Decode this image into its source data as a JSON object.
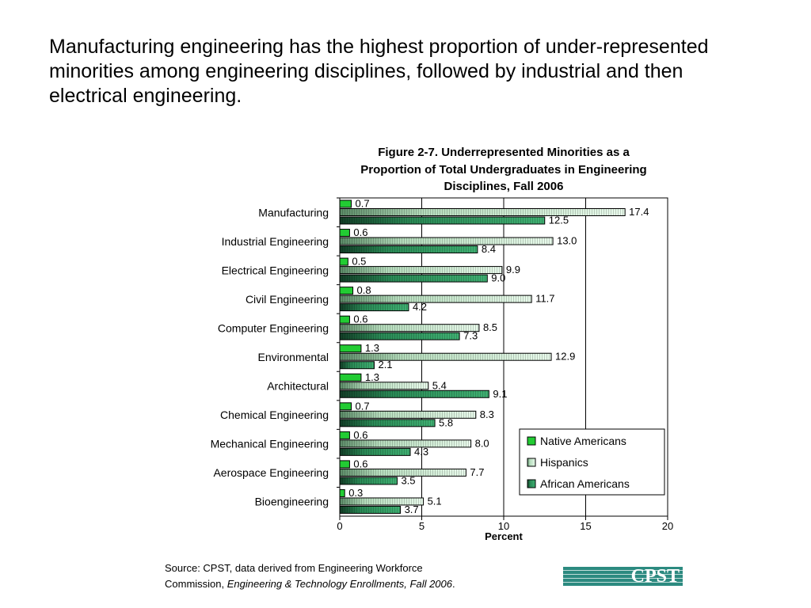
{
  "headline": "Manufacturing engineering has the highest proportion of under-represented minorities among engineering disciplines, followed by industrial and then electrical engineering.",
  "chart_data": {
    "type": "bar",
    "orientation": "horizontal",
    "title_lines": [
      "Figure 2-7. Underrepresented Minorities as a",
      "Proportion of Total Undergraduates in Engineering",
      "Disciplines, Fall 2006"
    ],
    "xlabel": "Percent",
    "ylabel": "",
    "xlim": [
      0,
      20
    ],
    "xticks": [
      0,
      5,
      10,
      15,
      20
    ],
    "grid": "vertical major gridlines",
    "legend_position": "lower-right",
    "categories": [
      "Manufacturing",
      "Industrial Engineering",
      "Electrical Engineering",
      "Civil Engineering",
      "Computer Engineering",
      "Environmental",
      "Architectural",
      "Chemical Engineering",
      "Mechanical Engineering",
      "Aerospace Engineering",
      "Bioengineering"
    ],
    "series": [
      {
        "name": "Native Americans",
        "color": "#22cc33",
        "values": [
          "0.7",
          "0.6",
          "0.5",
          "0.8",
          "0.6",
          "1.3",
          "1.3",
          "0.7",
          "0.6",
          "0.6",
          "0.3"
        ]
      },
      {
        "name": "Hispanics",
        "color": "#c8f2cf",
        "values": [
          "17.4",
          "13.0",
          "9.9",
          "11.7",
          "8.5",
          "12.9",
          "5.4",
          "8.3",
          "8.0",
          "7.7",
          "5.1"
        ]
      },
      {
        "name": "African Americans",
        "color": "#2e9a5e",
        "values": [
          "12.5",
          "8.4",
          "9.0",
          "4.2",
          "7.3",
          "2.1",
          "9.1",
          "5.8",
          "4.3",
          "3.5",
          "3.7"
        ]
      }
    ]
  },
  "source": {
    "line1": "Source: CPST, data derived from Engineering Workforce",
    "line2_prefix": "Commission, ",
    "line2_italic": "Engineering & Technology Enrollments, Fall 2006",
    "line2_suffix": "."
  },
  "logo": {
    "text": "CPST",
    "color": "#2c8a80"
  }
}
